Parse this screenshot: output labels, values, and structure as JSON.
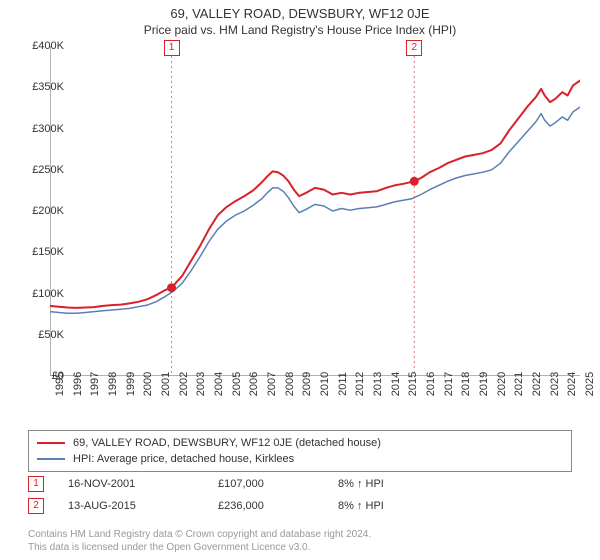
{
  "titles": {
    "line1": "69, VALLEY ROAD, DEWSBURY, WF12 0JE",
    "line2": "Price paid vs. HM Land Registry's House Price Index (HPI)"
  },
  "chart": {
    "type": "line",
    "plot_background": "#ffffff",
    "axis_color": "#666666",
    "grid": false,
    "ylim": [
      0,
      400000
    ],
    "ytick_step": 50000,
    "ytick_labels": [
      "£0",
      "£50K",
      "£100K",
      "£150K",
      "£200K",
      "£250K",
      "£300K",
      "£350K",
      "£400K"
    ],
    "xlim": [
      1995,
      2025
    ],
    "xtick_step": 1,
    "xtick_labels_start": 1995,
    "xtick_labels_end": 2025,
    "label_fontsize": 11,
    "series": [
      {
        "id": "address",
        "label": "69, VALLEY ROAD, DEWSBURY, WF12 0JE (detached house)",
        "color": "#d9212b",
        "line_width": 2,
        "data": [
          [
            1995.0,
            85000
          ],
          [
            1995.5,
            84000
          ],
          [
            1996.0,
            83000
          ],
          [
            1996.5,
            82500
          ],
          [
            1997.0,
            83000
          ],
          [
            1997.5,
            83500
          ],
          [
            1998.0,
            85000
          ],
          [
            1998.5,
            86000
          ],
          [
            1999.0,
            86500
          ],
          [
            1999.5,
            88000
          ],
          [
            2000.0,
            90000
          ],
          [
            2000.5,
            93000
          ],
          [
            2001.0,
            98000
          ],
          [
            2001.5,
            104000
          ],
          [
            2001.88,
            107000
          ],
          [
            2002.0,
            110000
          ],
          [
            2002.5,
            122000
          ],
          [
            2003.0,
            140000
          ],
          [
            2003.5,
            158000
          ],
          [
            2004.0,
            178000
          ],
          [
            2004.5,
            195000
          ],
          [
            2005.0,
            205000
          ],
          [
            2005.5,
            212000
          ],
          [
            2006.0,
            218000
          ],
          [
            2006.5,
            225000
          ],
          [
            2007.0,
            235000
          ],
          [
            2007.3,
            242000
          ],
          [
            2007.6,
            248000
          ],
          [
            2007.9,
            247000
          ],
          [
            2008.2,
            243000
          ],
          [
            2008.5,
            236000
          ],
          [
            2008.8,
            226000
          ],
          [
            2009.1,
            218000
          ],
          [
            2009.5,
            222000
          ],
          [
            2010.0,
            228000
          ],
          [
            2010.5,
            226000
          ],
          [
            2011.0,
            220000
          ],
          [
            2011.5,
            222000
          ],
          [
            2012.0,
            220000
          ],
          [
            2012.5,
            222000
          ],
          [
            2013.0,
            223000
          ],
          [
            2013.5,
            224000
          ],
          [
            2014.0,
            228000
          ],
          [
            2014.5,
            231000
          ],
          [
            2015.0,
            233000
          ],
          [
            2015.62,
            236000
          ],
          [
            2016.0,
            240000
          ],
          [
            2016.5,
            247000
          ],
          [
            2017.0,
            252000
          ],
          [
            2017.5,
            258000
          ],
          [
            2018.0,
            262000
          ],
          [
            2018.5,
            266000
          ],
          [
            2019.0,
            268000
          ],
          [
            2019.5,
            270000
          ],
          [
            2020.0,
            274000
          ],
          [
            2020.5,
            282000
          ],
          [
            2021.0,
            298000
          ],
          [
            2021.5,
            312000
          ],
          [
            2022.0,
            326000
          ],
          [
            2022.5,
            338000
          ],
          [
            2022.8,
            348000
          ],
          [
            2023.0,
            340000
          ],
          [
            2023.3,
            332000
          ],
          [
            2023.6,
            336000
          ],
          [
            2024.0,
            344000
          ],
          [
            2024.3,
            340000
          ],
          [
            2024.6,
            352000
          ],
          [
            2025.0,
            358000
          ]
        ]
      },
      {
        "id": "hpi",
        "label": "HPI: Average price, detached house, Kirklees",
        "color": "#5b7fb5",
        "line_width": 1.5,
        "data": [
          [
            1995.0,
            78000
          ],
          [
            1995.5,
            77000
          ],
          [
            1996.0,
            76000
          ],
          [
            1996.5,
            76000
          ],
          [
            1997.0,
            77000
          ],
          [
            1997.5,
            78000
          ],
          [
            1998.0,
            79000
          ],
          [
            1998.5,
            80000
          ],
          [
            1999.0,
            81000
          ],
          [
            1999.5,
            82000
          ],
          [
            2000.0,
            84000
          ],
          [
            2000.5,
            86000
          ],
          [
            2001.0,
            90000
          ],
          [
            2001.5,
            96000
          ],
          [
            2002.0,
            103000
          ],
          [
            2002.5,
            113000
          ],
          [
            2003.0,
            128000
          ],
          [
            2003.5,
            145000
          ],
          [
            2004.0,
            163000
          ],
          [
            2004.5,
            178000
          ],
          [
            2005.0,
            188000
          ],
          [
            2005.5,
            195000
          ],
          [
            2006.0,
            200000
          ],
          [
            2006.5,
            207000
          ],
          [
            2007.0,
            215000
          ],
          [
            2007.3,
            222000
          ],
          [
            2007.6,
            228000
          ],
          [
            2007.9,
            228000
          ],
          [
            2008.2,
            224000
          ],
          [
            2008.5,
            216000
          ],
          [
            2008.8,
            206000
          ],
          [
            2009.1,
            198000
          ],
          [
            2009.5,
            202000
          ],
          [
            2010.0,
            208000
          ],
          [
            2010.5,
            206000
          ],
          [
            2011.0,
            200000
          ],
          [
            2011.5,
            203000
          ],
          [
            2012.0,
            201000
          ],
          [
            2012.5,
            203000
          ],
          [
            2013.0,
            204000
          ],
          [
            2013.5,
            205000
          ],
          [
            2014.0,
            208000
          ],
          [
            2014.5,
            211000
          ],
          [
            2015.0,
            213000
          ],
          [
            2015.5,
            215000
          ],
          [
            2016.0,
            220000
          ],
          [
            2016.5,
            226000
          ],
          [
            2017.0,
            231000
          ],
          [
            2017.5,
            236000
          ],
          [
            2018.0,
            240000
          ],
          [
            2018.5,
            243000
          ],
          [
            2019.0,
            245000
          ],
          [
            2019.5,
            247000
          ],
          [
            2020.0,
            250000
          ],
          [
            2020.5,
            258000
          ],
          [
            2021.0,
            272000
          ],
          [
            2021.5,
            284000
          ],
          [
            2022.0,
            296000
          ],
          [
            2022.5,
            308000
          ],
          [
            2022.8,
            318000
          ],
          [
            2023.0,
            310000
          ],
          [
            2023.3,
            303000
          ],
          [
            2023.6,
            307000
          ],
          [
            2024.0,
            314000
          ],
          [
            2024.3,
            310000
          ],
          [
            2024.6,
            320000
          ],
          [
            2025.0,
            326000
          ]
        ]
      }
    ],
    "sale_markers": [
      {
        "n": "1",
        "x": 2001.88,
        "y": 107000,
        "color": "#d9212b"
      },
      {
        "n": "2",
        "x": 2015.62,
        "y": 236000,
        "color": "#d9212b"
      }
    ],
    "sale_vline_color": "#d9212b",
    "sale_vline_dash": "2,3",
    "sale_badge_y_top_offset": -6
  },
  "legend": {
    "border_color": "#888888",
    "fontsize": 11
  },
  "sales_table": {
    "rows": [
      {
        "badge": "1",
        "date": "16-NOV-2001",
        "price": "£107,000",
        "delta": "8% ↑ HPI"
      },
      {
        "badge": "2",
        "date": "13-AUG-2015",
        "price": "£236,000",
        "delta": "8% ↑ HPI"
      }
    ],
    "badge_border_color": "#d9212b",
    "col_widths": {
      "date": 150,
      "price": 120,
      "delta": 120
    }
  },
  "footer": {
    "line1": "Contains HM Land Registry data © Crown copyright and database right 2024.",
    "line2": "This data is licensed under the Open Government Licence v3.0."
  }
}
